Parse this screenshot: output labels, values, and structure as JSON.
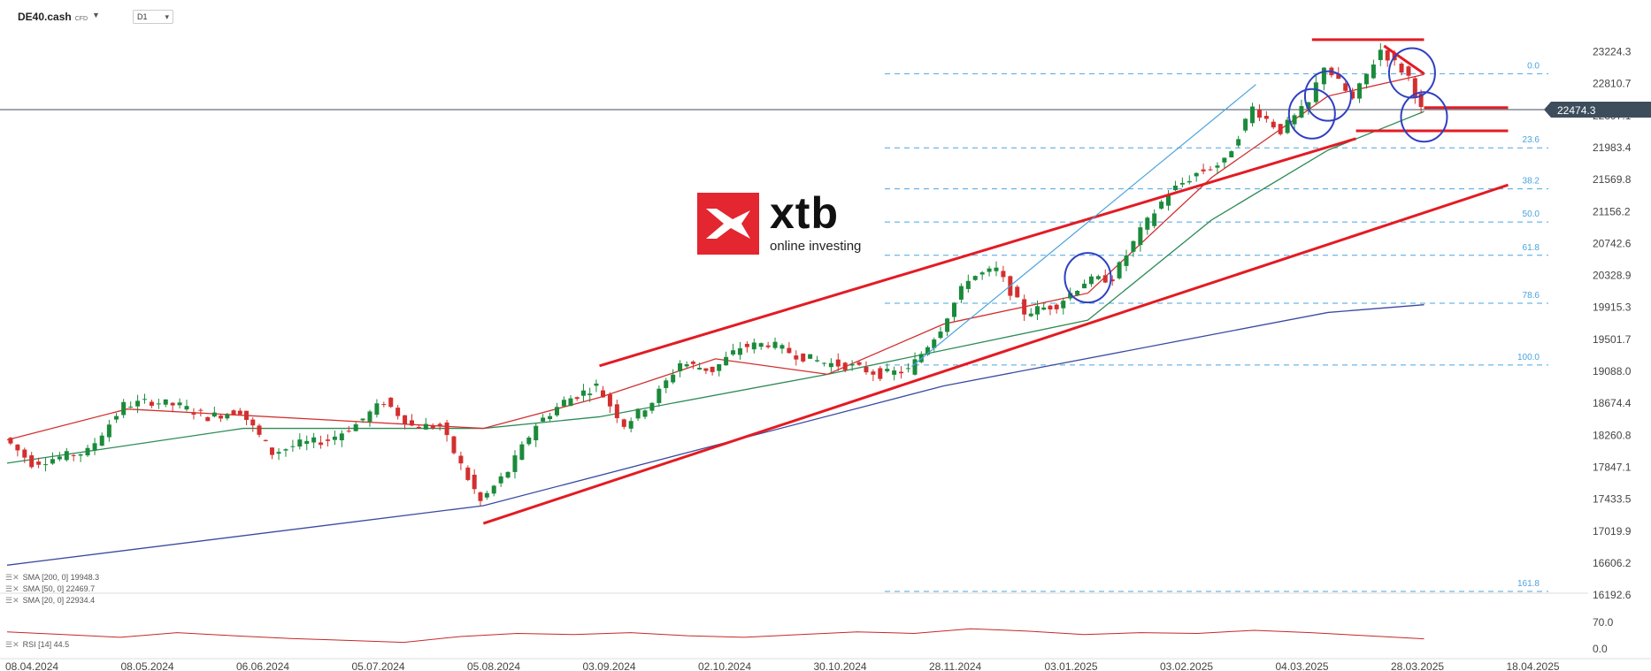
{
  "header": {
    "symbol": "DE40.cash",
    "symbol_type": "CFD",
    "timeframe": "D1"
  },
  "indicators": [
    {
      "label": "SMA [200, 0]  19948.3",
      "color": "#3a4aa0"
    },
    {
      "label": "SMA [50, 0]  22469.7",
      "color": "#2e8b57"
    },
    {
      "label": "SMA [20, 0]  22934.4",
      "color": "#d32f2f"
    }
  ],
  "rsi": {
    "label": "RSI [14]  44.5",
    "ticks": [
      "70.0",
      "0.0"
    ],
    "color": "#c62828"
  },
  "watermark": {
    "brand": "xtb",
    "tagline": "online investing",
    "color": "#e3262f"
  },
  "chart_data": {
    "type": "candlestick",
    "title": "",
    "price_axis": [
      "23224.3",
      "22810.7",
      "22397.1",
      "21983.4",
      "21569.8",
      "21156.2",
      "20742.6",
      "20328.9",
      "19915.3",
      "19501.7",
      "19088.0",
      "18674.4",
      "18260.8",
      "17847.1",
      "17433.5",
      "17019.9",
      "16606.2",
      "16192.6"
    ],
    "ylim": [
      16192.6,
      23224.3
    ],
    "current_price": "22474.3",
    "date_axis": [
      "08.04.2024",
      "08.05.2024",
      "06.06.2024",
      "05.07.2024",
      "05.08.2024",
      "03.09.2024",
      "02.10.2024",
      "30.10.2024",
      "28.11.2024",
      "03.01.2025",
      "03.02.2025",
      "04.03.2025",
      "28.03.2025",
      "18.04.2025"
    ],
    "fibonacci": [
      {
        "level": "0.0",
        "price": 22940
      },
      {
        "level": "23.6",
        "price": 21980
      },
      {
        "level": "38.2",
        "price": 21450
      },
      {
        "level": "50.0",
        "price": 21020
      },
      {
        "level": "61.8",
        "price": 20590
      },
      {
        "level": "78.6",
        "price": 19970
      },
      {
        "level": "100.0",
        "price": 19170
      },
      {
        "level": "161.8",
        "price": 16240
      }
    ],
    "close_path": [
      [
        "08.04.2024",
        18230
      ],
      [
        "15.04.2024",
        17900
      ],
      [
        "22.04.2024",
        17980
      ],
      [
        "29.04.2024",
        18050
      ],
      [
        "08.05.2024",
        18650
      ],
      [
        "15.05.2024",
        18700
      ],
      [
        "22.05.2024",
        18640
      ],
      [
        "29.05.2024",
        18500
      ],
      [
        "06.06.2024",
        18580
      ],
      [
        "14.06.2024",
        18030
      ],
      [
        "21.06.2024",
        18150
      ],
      [
        "28.06.2024",
        18200
      ],
      [
        "05.07.2024",
        18400
      ],
      [
        "12.07.2024",
        18700
      ],
      [
        "19.07.2024",
        18380
      ],
      [
        "26.07.2024",
        18380
      ],
      [
        "02.08.2024",
        17700
      ],
      [
        "05.08.2024",
        17400
      ],
      [
        "12.08.2024",
        17800
      ],
      [
        "19.08.2024",
        18400
      ],
      [
        "26.08.2024",
        18700
      ],
      [
        "03.09.2024",
        18900
      ],
      [
        "10.09.2024",
        18400
      ],
      [
        "17.09.2024",
        18700
      ],
      [
        "24.09.2024",
        19200
      ],
      [
        "02.10.2024",
        19100
      ],
      [
        "09.10.2024",
        19400
      ],
      [
        "16.10.2024",
        19450
      ],
      [
        "23.10.2024",
        19300
      ],
      [
        "30.10.2024",
        19200
      ],
      [
        "06.11.2024",
        19150
      ],
      [
        "13.11.2024",
        19050
      ],
      [
        "20.11.2024",
        19100
      ],
      [
        "28.11.2024",
        19650
      ],
      [
        "05.12.2024",
        20300
      ],
      [
        "12.12.2024",
        20400
      ],
      [
        "19.12.2024",
        19850
      ],
      [
        "27.12.2024",
        19950
      ],
      [
        "03.01.2025",
        20250
      ],
      [
        "10.01.2025",
        20300
      ],
      [
        "17.01.2025",
        20900
      ],
      [
        "24.01.2025",
        21400
      ],
      [
        "31.01.2025",
        21650
      ],
      [
        "07.02.2025",
        21800
      ],
      [
        "14.02.2025",
        22500
      ],
      [
        "21.02.2025",
        22200
      ],
      [
        "28.02.2025",
        22550
      ],
      [
        "04.03.2025",
        23050
      ],
      [
        "11.03.2025",
        22600
      ],
      [
        "18.03.2025",
        23250
      ],
      [
        "25.03.2025",
        22900
      ],
      [
        "28.03.2025",
        22470
      ]
    ],
    "sma200_path": [
      [
        "08.04.2024",
        16580
      ],
      [
        "05.08.2024",
        17350
      ],
      [
        "28.11.2024",
        18900
      ],
      [
        "04.03.2025",
        19850
      ],
      [
        "28.03.2025",
        19950
      ]
    ],
    "sma50_path": [
      [
        "08.04.2024",
        17900
      ],
      [
        "06.06.2024",
        18350
      ],
      [
        "05.08.2024",
        18350
      ],
      [
        "03.09.2024",
        18500
      ],
      [
        "30.10.2024",
        19050
      ],
      [
        "03.01.2025",
        19750
      ],
      [
        "03.02.2025",
        21050
      ],
      [
        "04.03.2025",
        21950
      ],
      [
        "28.03.2025",
        22450
      ]
    ],
    "sma20_path": [
      [
        "08.04.2024",
        18200
      ],
      [
        "08.05.2024",
        18600
      ],
      [
        "05.08.2024",
        18350
      ],
      [
        "03.09.2024",
        18750
      ],
      [
        "02.10.2024",
        19250
      ],
      [
        "30.10.2024",
        19050
      ],
      [
        "28.11.2024",
        19700
      ],
      [
        "03.01.2025",
        20100
      ],
      [
        "03.02.2025",
        21600
      ],
      [
        "04.03.2025",
        22650
      ],
      [
        "28.03.2025",
        22930
      ]
    ],
    "rsi_path": [
      62,
      55,
      48,
      60,
      52,
      45,
      40,
      35,
      50,
      58,
      55,
      60,
      52,
      48,
      55,
      62,
      58,
      70,
      64,
      55,
      60,
      58,
      66,
      60,
      52,
      44
    ],
    "trendlines": [
      {
        "name": "channel-upper",
        "from": [
          "03.09.2024",
          19160
        ],
        "to": [
          "11.03.2025",
          22100
        ]
      },
      {
        "name": "channel-lower",
        "from": [
          "05.08.2024",
          17120
        ],
        "to": [
          "18.04.2025",
          21500
        ]
      },
      {
        "name": "top-line",
        "from": [
          "28.02.2025",
          23380
        ],
        "to": [
          "28.03.2025",
          23380
        ]
      },
      {
        "name": "wedge-upper",
        "from": [
          "18.03.2025",
          23300
        ],
        "to": [
          "28.03.2025",
          22940
        ]
      },
      {
        "name": "mid-line",
        "from": [
          "28.03.2025",
          22500
        ],
        "to": [
          "18.04.2025",
          22500
        ]
      },
      {
        "name": "low-line",
        "from": [
          "11.03.2025",
          22200
        ],
        "to": [
          "18.04.2025",
          22200
        ]
      }
    ]
  }
}
